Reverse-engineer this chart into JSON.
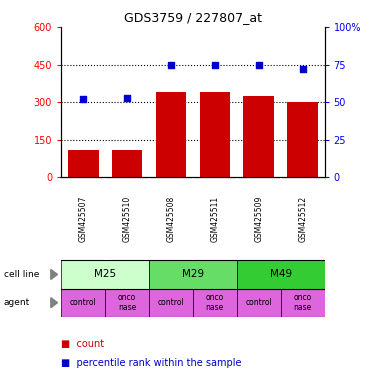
{
  "title": "GDS3759 / 227807_at",
  "samples": [
    "GSM425507",
    "GSM425510",
    "GSM425508",
    "GSM425511",
    "GSM425509",
    "GSM425512"
  ],
  "counts": [
    110,
    110,
    340,
    340,
    325,
    300
  ],
  "percentiles": [
    52,
    53,
    75,
    75,
    75,
    72
  ],
  "bar_color": "#cc0000",
  "dot_color": "#0000cc",
  "left_ylim": [
    0,
    600
  ],
  "left_yticks": [
    0,
    150,
    300,
    450,
    600
  ],
  "left_yticklabels": [
    "0",
    "150",
    "300",
    "450",
    "600"
  ],
  "right_ylim": [
    0,
    100
  ],
  "right_yticks": [
    0,
    25,
    50,
    75,
    100
  ],
  "right_yticklabels": [
    "0",
    "25",
    "50",
    "75",
    "100%"
  ],
  "hlines": [
    150,
    300,
    450
  ],
  "cell_line_groups": [
    {
      "label": "M25",
      "start": 0,
      "end": 2,
      "color": "#ccffcc"
    },
    {
      "label": "M29",
      "start": 2,
      "end": 4,
      "color": "#66dd66"
    },
    {
      "label": "M49",
      "start": 4,
      "end": 6,
      "color": "#33cc33"
    }
  ],
  "agents": [
    "control",
    "onconase",
    "control",
    "onconase",
    "control",
    "onconase"
  ],
  "agent_color": "#dd66dd",
  "sample_bg_color": "#c8c8c8",
  "legend_count_color": "#cc0000",
  "legend_dot_color": "#0000cc",
  "left_label_color": "red",
  "right_label_color": "blue"
}
